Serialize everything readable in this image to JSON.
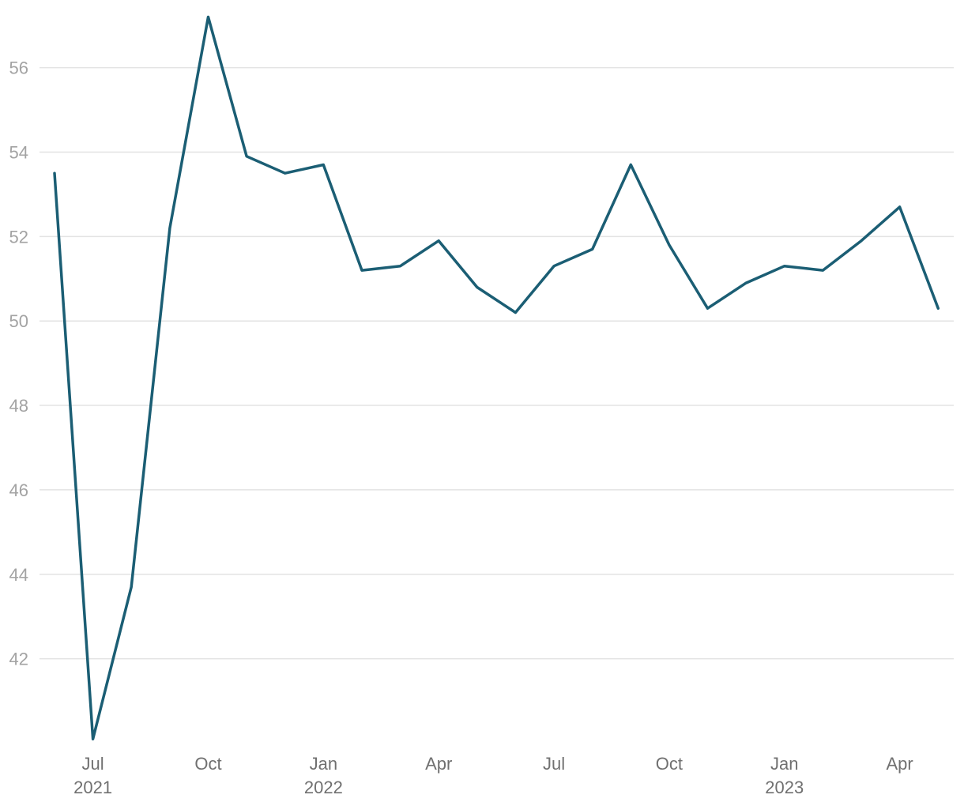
{
  "chart_data": {
    "type": "line",
    "title": "",
    "xlabel": "",
    "ylabel": "",
    "grid": "horizontal",
    "legend": "none",
    "ylim": [
      40,
      57.2
    ],
    "yticks": [
      42,
      44,
      46,
      48,
      50,
      52,
      54,
      56
    ],
    "x_ticks": [
      {
        "date": "2021-07",
        "label": "Jul",
        "year": "2021"
      },
      {
        "date": "2021-10",
        "label": "Oct",
        "year": ""
      },
      {
        "date": "2022-01",
        "label": "Jan",
        "year": "2022"
      },
      {
        "date": "2022-04",
        "label": "Apr",
        "year": ""
      },
      {
        "date": "2022-07",
        "label": "Jul",
        "year": ""
      },
      {
        "date": "2022-10",
        "label": "Oct",
        "year": ""
      },
      {
        "date": "2023-01",
        "label": "Jan",
        "year": "2023"
      },
      {
        "date": "2023-04",
        "label": "Apr",
        "year": ""
      }
    ],
    "series": [
      {
        "color": "#1b5e74",
        "points": [
          {
            "x": "2021-06",
            "y": 53.5
          },
          {
            "x": "2021-07",
            "y": 40.1
          },
          {
            "x": "2021-08",
            "y": 43.7
          },
          {
            "x": "2021-09",
            "y": 52.2
          },
          {
            "x": "2021-10",
            "y": 57.2
          },
          {
            "x": "2021-11",
            "y": 53.9
          },
          {
            "x": "2021-12",
            "y": 53.5
          },
          {
            "x": "2022-01",
            "y": 53.7
          },
          {
            "x": "2022-02",
            "y": 51.2
          },
          {
            "x": "2022-03",
            "y": 51.3
          },
          {
            "x": "2022-04",
            "y": 51.9
          },
          {
            "x": "2022-05",
            "y": 50.8
          },
          {
            "x": "2022-06",
            "y": 50.2
          },
          {
            "x": "2022-07",
            "y": 51.3
          },
          {
            "x": "2022-08",
            "y": 51.7
          },
          {
            "x": "2022-09",
            "y": 53.7
          },
          {
            "x": "2022-10",
            "y": 51.8
          },
          {
            "x": "2022-11",
            "y": 50.3
          },
          {
            "x": "2022-12",
            "y": 50.9
          },
          {
            "x": "2023-01",
            "y": 51.3
          },
          {
            "x": "2023-02",
            "y": 51.2
          },
          {
            "x": "2023-03",
            "y": 51.9
          },
          {
            "x": "2023-04",
            "y": 52.7
          },
          {
            "x": "2023-05",
            "y": 50.3
          }
        ]
      }
    ]
  }
}
